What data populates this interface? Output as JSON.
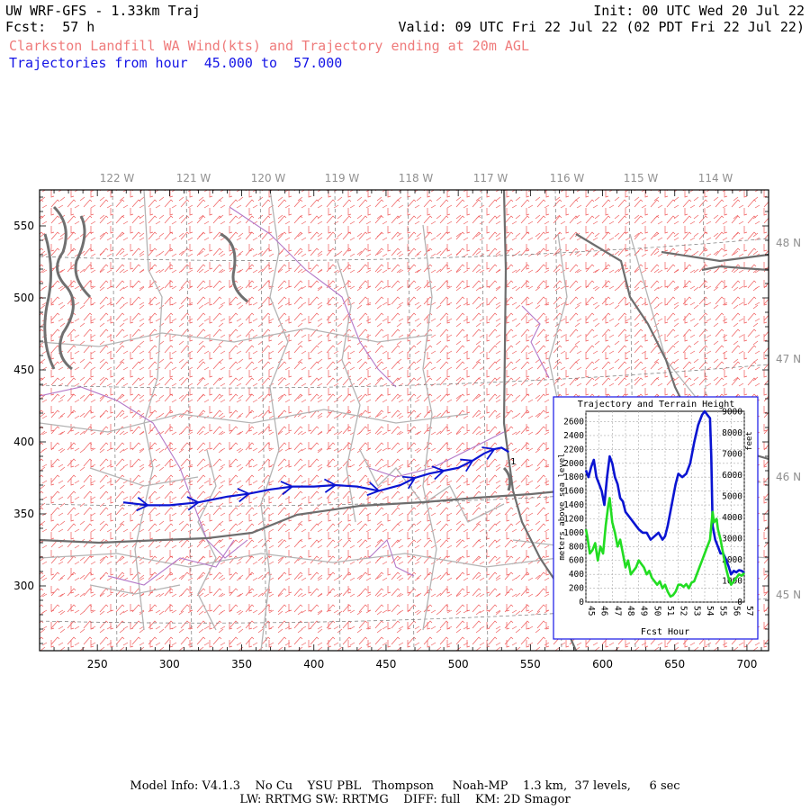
{
  "header": {
    "model_title": "UW WRF-GFS - 1.33km Traj",
    "init": "Init: 00 UTC Wed 20 Jul 22",
    "fcst": "Fcst:  57 h",
    "valid": "Valid: 09 UTC Fri 22 Jul 22 (02 PDT Fri 22 Jul 22)",
    "subtitle": "Clarkston Landfill WA Wind(kts) and Trajectory ending at 20m AGL",
    "traj_range": "Trajectories from hour  45.000 to  57.000"
  },
  "colors": {
    "trajectory": "#0a14d2",
    "wind_barbs": "#ef5a5a",
    "subtitle": "#ef7b7b",
    "range_text": "#1414e6",
    "state_border": "#6e6e6e",
    "county_border": "#b4b4b4",
    "water": "#b478c8",
    "terrain_line": "#22dd22"
  },
  "map": {
    "lon_labels": [
      "122 W",
      "121 W",
      "120 W",
      "119 W",
      "118 W",
      "117 W",
      "116 W",
      "115 W",
      "114 W"
    ],
    "lat_labels": [
      "48 N",
      "47 N",
      "46 N",
      "45 N"
    ],
    "x_ticks": [
      "250",
      "300",
      "350",
      "400",
      "450",
      "500",
      "550",
      "600",
      "650",
      "700"
    ],
    "y_ticks": [
      "550",
      "500",
      "450",
      "400",
      "350",
      "300"
    ],
    "x_tick_values": [
      250,
      300,
      350,
      400,
      450,
      500,
      550,
      600,
      650,
      700
    ],
    "y_tick_values": [
      550,
      500,
      450,
      400,
      350,
      300
    ],
    "x_range": [
      210,
      715
    ],
    "y_range": [
      255,
      575
    ],
    "trajectory": [
      [
        268,
        358
      ],
      [
        285,
        356
      ],
      [
        300,
        356
      ],
      [
        320,
        358
      ],
      [
        340,
        362
      ],
      [
        355,
        364
      ],
      [
        370,
        367
      ],
      [
        385,
        369
      ],
      [
        400,
        369
      ],
      [
        415,
        370
      ],
      [
        430,
        369
      ],
      [
        445,
        366
      ],
      [
        460,
        370
      ],
      [
        470,
        375
      ],
      [
        480,
        378
      ],
      [
        490,
        380
      ],
      [
        500,
        382
      ],
      [
        510,
        387
      ],
      [
        518,
        392
      ],
      [
        525,
        395
      ],
      [
        530,
        396
      ],
      [
        535,
        393
      ]
    ],
    "end_marker": "1"
  },
  "inset": {
    "title": "Trajectory and Terrain Height",
    "left_axis_label": "meters above sea level",
    "right_axis_label": "feet",
    "x_label": "Fcst Hour",
    "left_ticks": [
      "0",
      "200",
      "400",
      "600",
      "800",
      "1000",
      "1200",
      "1400",
      "1600",
      "1800",
      "2000",
      "2200",
      "2400",
      "2600"
    ],
    "left_tick_values": [
      0,
      200,
      400,
      600,
      800,
      1000,
      1200,
      1400,
      1600,
      1800,
      2000,
      2200,
      2400,
      2600
    ],
    "right_ticks": [
      "0",
      "1000",
      "2000",
      "3000",
      "4000",
      "5000",
      "6000",
      "7000",
      "8000",
      "9000"
    ],
    "right_tick_values": [
      0,
      1000,
      2000,
      3000,
      4000,
      5000,
      6000,
      7000,
      8000,
      9000
    ],
    "x_ticks": [
      "45",
      "46",
      "47",
      "48",
      "49",
      "50",
      "51",
      "52",
      "53",
      "54",
      "55",
      "56",
      "57"
    ],
    "x_tick_values": [
      45,
      46,
      47,
      48,
      49,
      50,
      51,
      52,
      53,
      54,
      55,
      56,
      57
    ],
    "chart_data": {
      "type": "line",
      "title": "Trajectory and Terrain Height",
      "xlabel": "Fcst Hour",
      "ylabel": "meters above sea level",
      "xlim": [
        45,
        57
      ],
      "ylim": [
        0,
        2750
      ],
      "series": [
        {
          "values": [
            [
              45.0,
              1900
            ],
            [
              45.2,
              1800
            ],
            [
              45.4,
              1950
            ],
            [
              45.6,
              2050
            ],
            [
              45.8,
              1800
            ],
            [
              46.0,
              1700
            ],
            [
              46.2,
              1600
            ],
            [
              46.4,
              1400
            ],
            [
              46.6,
              1800
            ],
            [
              46.8,
              2100
            ],
            [
              47.0,
              2000
            ],
            [
              47.2,
              1800
            ],
            [
              47.4,
              1700
            ],
            [
              47.6,
              1500
            ],
            [
              47.8,
              1450
            ],
            [
              48.0,
              1300
            ],
            [
              48.2,
              1250
            ],
            [
              48.4,
              1200
            ],
            [
              48.6,
              1150
            ],
            [
              48.8,
              1100
            ],
            [
              49.0,
              1050
            ],
            [
              49.3,
              1000
            ],
            [
              49.6,
              1000
            ],
            [
              49.9,
              900
            ],
            [
              50.2,
              950
            ],
            [
              50.5,
              1000
            ],
            [
              50.8,
              900
            ],
            [
              51.0,
              950
            ],
            [
              51.2,
              1100
            ],
            [
              51.5,
              1400
            ],
            [
              51.8,
              1700
            ],
            [
              52.0,
              1850
            ],
            [
              52.3,
              1800
            ],
            [
              52.6,
              1850
            ],
            [
              52.9,
              2000
            ],
            [
              53.2,
              2300
            ],
            [
              53.5,
              2550
            ],
            [
              53.8,
              2700
            ],
            [
              54.0,
              2750
            ],
            [
              54.2,
              2700
            ],
            [
              54.4,
              2650
            ],
            [
              54.5,
              2100
            ],
            [
              54.6,
              1100
            ],
            [
              54.8,
              900
            ],
            [
              55.0,
              800
            ],
            [
              55.2,
              700
            ],
            [
              55.4,
              700
            ],
            [
              55.6,
              620
            ],
            [
              55.8,
              520
            ],
            [
              56.0,
              400
            ],
            [
              56.2,
              450
            ],
            [
              56.4,
              430
            ],
            [
              56.6,
              460
            ],
            [
              56.8,
              450
            ],
            [
              57.0,
              420
            ]
          ]
        },
        {
          "values": [
            [
              45.0,
              1050
            ],
            [
              45.1,
              950
            ],
            [
              45.3,
              700
            ],
            [
              45.5,
              750
            ],
            [
              45.7,
              850
            ],
            [
              45.9,
              600
            ],
            [
              46.1,
              800
            ],
            [
              46.3,
              700
            ],
            [
              46.5,
              1100
            ],
            [
              46.7,
              1400
            ],
            [
              46.8,
              1500
            ],
            [
              47.0,
              1150
            ],
            [
              47.2,
              1000
            ],
            [
              47.4,
              800
            ],
            [
              47.6,
              900
            ],
            [
              47.8,
              700
            ],
            [
              48.0,
              500
            ],
            [
              48.2,
              600
            ],
            [
              48.4,
              400
            ],
            [
              48.6,
              450
            ],
            [
              48.8,
              500
            ],
            [
              49.0,
              600
            ],
            [
              49.2,
              550
            ],
            [
              49.4,
              500
            ],
            [
              49.6,
              400
            ],
            [
              49.8,
              450
            ],
            [
              50.0,
              350
            ],
            [
              50.2,
              300
            ],
            [
              50.4,
              250
            ],
            [
              50.6,
              300
            ],
            [
              50.8,
              200
            ],
            [
              51.0,
              250
            ],
            [
              51.2,
              150
            ],
            [
              51.4,
              80
            ],
            [
              51.6,
              100
            ],
            [
              51.8,
              150
            ],
            [
              52.0,
              250
            ],
            [
              52.2,
              250
            ],
            [
              52.4,
              220
            ],
            [
              52.6,
              260
            ],
            [
              52.8,
              200
            ],
            [
              53.0,
              280
            ],
            [
              53.2,
              300
            ],
            [
              53.4,
              400
            ],
            [
              53.6,
              500
            ],
            [
              53.8,
              600
            ],
            [
              54.0,
              700
            ],
            [
              54.2,
              800
            ],
            [
              54.4,
              900
            ],
            [
              54.5,
              1100
            ],
            [
              54.6,
              1300
            ],
            [
              54.7,
              1150
            ],
            [
              54.9,
              1200
            ],
            [
              55.0,
              1050
            ],
            [
              55.2,
              900
            ],
            [
              55.4,
              700
            ],
            [
              55.6,
              500
            ],
            [
              55.8,
              350
            ],
            [
              56.0,
              250
            ],
            [
              56.2,
              300
            ],
            [
              56.4,
              350
            ],
            [
              56.6,
              400
            ],
            [
              56.8,
              380
            ],
            [
              57.0,
              420
            ]
          ]
        }
      ]
    }
  },
  "footer": {
    "line1": "Model Info: V4.1.3    No Cu    YSU PBL   Thompson     Noah-MP    1.3 km,  37 levels,     6 sec",
    "line2": "LW: RRTMG SW: RRTMG    DIFF: full    KM: 2D Smagor"
  }
}
